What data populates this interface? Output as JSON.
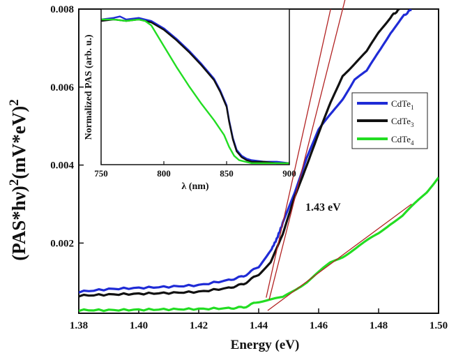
{
  "chart_data": [
    {
      "type": "line",
      "name": "main",
      "xlabel": "Energy (eV)",
      "ylabel_main": "(PAS*hν)",
      "ylabel_sup1": "2",
      "ylabel_units": "(mV*eV)",
      "ylabel_sup2": "2",
      "xlim": [
        1.38,
        1.5
      ],
      "ylim": [
        0.0002,
        0.008
      ],
      "x_ticks": [
        1.38,
        1.4,
        1.42,
        1.44,
        1.46,
        1.48,
        1.5
      ],
      "x_tick_labels": [
        "1.38",
        "1.40",
        "1.42",
        "1.44",
        "1.46",
        "1.48",
        "1.50"
      ],
      "y_ticks": [
        0.002,
        0.004,
        0.006,
        0.008
      ],
      "y_tick_labels": [
        "0.002",
        "0.004",
        "0.006",
        "0.008"
      ],
      "legend": [
        {
          "base": "CdTe",
          "sub": "1",
          "color": "#1f2bd6"
        },
        {
          "base": "CdTe",
          "sub": "3",
          "color": "#111111"
        },
        {
          "base": "CdTe",
          "sub": "4",
          "color": "#22dd22"
        }
      ],
      "annotation": "1.43 eV",
      "series": [
        {
          "name": "CdTe1",
          "color": "#1f2bd6",
          "x": [
            1.38,
            1.39,
            1.4,
            1.41,
            1.42,
            1.43,
            1.435,
            1.44,
            1.444,
            1.446,
            1.448,
            1.452,
            1.456,
            1.46,
            1.464,
            1.468,
            1.472,
            1.476,
            1.48,
            1.484,
            1.488,
            1.491
          ],
          "y": [
            0.00075,
            0.00082,
            0.00085,
            0.00088,
            0.00092,
            0.00105,
            0.00115,
            0.0014,
            0.0018,
            0.0021,
            0.0025,
            0.0033,
            0.0042,
            0.0049,
            0.0053,
            0.0057,
            0.0062,
            0.0064,
            0.0069,
            0.0074,
            0.0078,
            0.008
          ]
        },
        {
          "name": "CdTe3",
          "color": "#111111",
          "x": [
            1.38,
            1.39,
            1.4,
            1.41,
            1.42,
            1.43,
            1.435,
            1.44,
            1.444,
            1.448,
            1.452,
            1.456,
            1.46,
            1.464,
            1.468,
            1.472,
            1.476,
            1.48,
            1.484,
            1.487
          ],
          "y": [
            0.00065,
            0.00068,
            0.0007,
            0.00072,
            0.00075,
            0.00085,
            0.00095,
            0.0012,
            0.0015,
            0.0022,
            0.0032,
            0.004,
            0.0048,
            0.0056,
            0.0063,
            0.0066,
            0.0069,
            0.0074,
            0.0078,
            0.008
          ]
        },
        {
          "name": "CdTe4",
          "color": "#22dd22",
          "x": [
            1.38,
            1.39,
            1.4,
            1.41,
            1.42,
            1.43,
            1.435,
            1.44,
            1.444,
            1.448,
            1.452,
            1.456,
            1.46,
            1.464,
            1.468,
            1.472,
            1.476,
            1.48,
            1.484,
            1.488,
            1.492,
            1.496,
            1.5
          ],
          "y": [
            0.00028,
            0.00028,
            0.00029,
            0.0003,
            0.00031,
            0.00033,
            0.00035,
            0.0005,
            0.00055,
            0.0006,
            0.0008,
            0.001,
            0.00125,
            0.0015,
            0.00165,
            0.00185,
            0.00205,
            0.00225,
            0.0025,
            0.0027,
            0.003,
            0.0033,
            0.0037
          ]
        }
      ],
      "fit_lines": [
        {
          "x": [
            1.4425,
            1.464
          ],
          "y": [
            0.0006,
            0.008
          ]
        },
        {
          "x": [
            1.4435,
            1.469
          ],
          "y": [
            0.00055,
            0.0083
          ]
        },
        {
          "x": [
            1.443,
            1.491
          ],
          "y": [
            0.00027,
            0.003
          ]
        }
      ],
      "fit_color": "#b22222"
    },
    {
      "type": "line",
      "name": "inset",
      "xlabel": "λ (nm)",
      "ylabel": "Normalized PAS (arb. u.)",
      "xlim": [
        750,
        900
      ],
      "ylim": [
        0,
        1.05
      ],
      "x_ticks": [
        750,
        800,
        850,
        900
      ],
      "x_tick_labels": [
        "750",
        "800",
        "850",
        "900"
      ],
      "series": [
        {
          "name": "CdTe1",
          "color": "#1f2bd6",
          "x": [
            750,
            760,
            765,
            770,
            780,
            785,
            790,
            800,
            810,
            820,
            830,
            840,
            845,
            850,
            852,
            855,
            858,
            862,
            866,
            870,
            880,
            890,
            900
          ],
          "y": [
            0.98,
            0.99,
            1.0,
            0.98,
            0.99,
            0.98,
            0.97,
            0.92,
            0.85,
            0.77,
            0.68,
            0.58,
            0.5,
            0.4,
            0.3,
            0.18,
            0.1,
            0.06,
            0.04,
            0.03,
            0.02,
            0.02,
            0.01
          ]
        },
        {
          "name": "CdTe3",
          "color": "#111111",
          "x": [
            750,
            760,
            770,
            780,
            785,
            790,
            800,
            810,
            820,
            830,
            840,
            845,
            850,
            852,
            855,
            858,
            862,
            866,
            870,
            880,
            890,
            900
          ],
          "y": [
            0.97,
            0.98,
            0.97,
            0.98,
            0.97,
            0.96,
            0.91,
            0.84,
            0.76,
            0.67,
            0.57,
            0.49,
            0.39,
            0.29,
            0.17,
            0.09,
            0.05,
            0.03,
            0.02,
            0.02,
            0.01,
            0.01
          ]
        },
        {
          "name": "CdTe4",
          "color": "#22dd22",
          "x": [
            750,
            760,
            770,
            780,
            785,
            790,
            800,
            810,
            820,
            830,
            840,
            848,
            852,
            856,
            860,
            865,
            870,
            880,
            890,
            900
          ],
          "y": [
            0.98,
            0.98,
            0.97,
            0.98,
            0.97,
            0.94,
            0.8,
            0.66,
            0.53,
            0.41,
            0.3,
            0.2,
            0.12,
            0.06,
            0.03,
            0.02,
            0.01,
            0.01,
            0.01,
            0.01
          ]
        }
      ]
    }
  ]
}
